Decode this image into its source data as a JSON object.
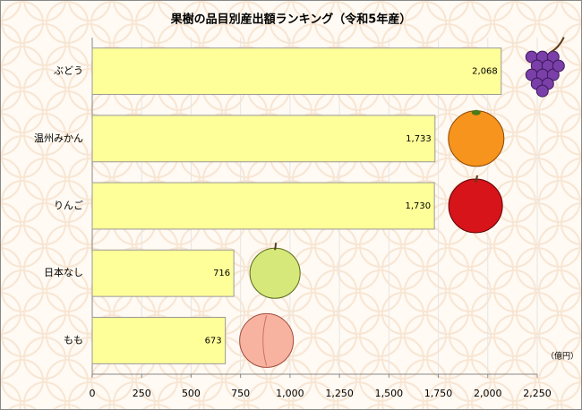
{
  "chart_data": {
    "type": "hbar",
    "title": "果樹の品目別産出額ランキング（令和5年産）",
    "categories": [
      "ぶどう",
      "温州みかん",
      "りんご",
      "日本なし",
      "もも"
    ],
    "values": [
      2068,
      1733,
      1730,
      716,
      673
    ],
    "value_labels": [
      "2,068",
      "1,733",
      "1,730",
      "716",
      "673"
    ],
    "color": "#ffff99",
    "unit_label": "（億円）",
    "xlim": [
      0,
      2250
    ],
    "xticks": [
      0,
      250,
      500,
      750,
      {
        "value": 1000,
        "label": "1,000"
      },
      {
        "value": 1250,
        "label": "1,250"
      },
      {
        "value": 1500,
        "label": "1,500"
      },
      {
        "value": 1750,
        "label": "1,750"
      },
      {
        "value": 2000,
        "label": "2,000"
      },
      {
        "value": 2250,
        "label": "2,250"
      }
    ],
    "grid": true
  }
}
